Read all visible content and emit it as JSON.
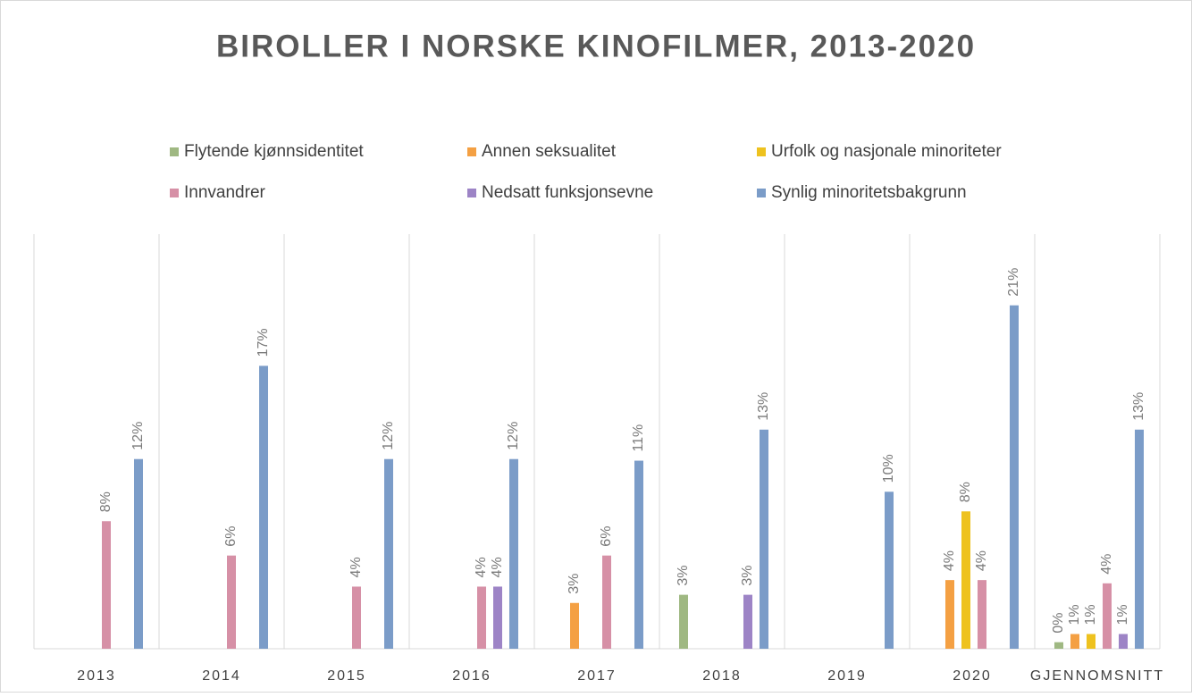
{
  "chart_data": {
    "type": "bar",
    "title": "BIROLLER I NORSKE KINOFILMER, 2013-2020",
    "categories": [
      "2013",
      "2014",
      "2015",
      "2016",
      "2017",
      "2018",
      "2019",
      "2020",
      "GJENNOMSNITT"
    ],
    "series": [
      {
        "name": "Flytende kjønnsidentitet",
        "color": "#9fb882",
        "values": [
          null,
          null,
          null,
          null,
          null,
          3.3,
          null,
          null,
          0.4
        ],
        "value_labels": [
          null,
          null,
          null,
          null,
          null,
          "3%",
          null,
          null,
          "0%"
        ]
      },
      {
        "name": "Annen seksualitet",
        "color": "#f4a043",
        "values": [
          null,
          null,
          null,
          null,
          2.8,
          null,
          null,
          4.2,
          0.9
        ],
        "value_labels": [
          null,
          null,
          null,
          null,
          "3%",
          null,
          null,
          "4%",
          "1%"
        ]
      },
      {
        "name": "Urfolk og nasjonale minoriteter",
        "color": "#eec21f",
        "values": [
          null,
          null,
          null,
          null,
          null,
          null,
          null,
          8.4,
          0.9
        ],
        "value_labels": [
          null,
          null,
          null,
          null,
          null,
          null,
          null,
          "8%",
          "1%"
        ]
      },
      {
        "name": "Innvandrer",
        "color": "#d690a6",
        "values": [
          7.8,
          5.7,
          3.8,
          3.8,
          5.7,
          null,
          null,
          4.2,
          4.0
        ],
        "value_labels": [
          "8%",
          "6%",
          "4%",
          "4%",
          "6%",
          null,
          null,
          "4%",
          "4%"
        ]
      },
      {
        "name": "Nedsatt funksjonsevne",
        "color": "#9d84c6",
        "values": [
          null,
          null,
          null,
          3.8,
          null,
          3.3,
          null,
          null,
          0.9
        ],
        "value_labels": [
          null,
          null,
          null,
          "4%",
          null,
          "3%",
          null,
          null,
          "1%"
        ]
      },
      {
        "name": "Synlig minoritetsbakgrunn",
        "color": "#7b9cc8",
        "values": [
          11.6,
          17.3,
          11.6,
          11.6,
          11.5,
          13.4,
          9.6,
          21,
          13.4
        ],
        "value_labels": [
          "12%",
          "17%",
          "12%",
          "12%",
          "11%",
          "13%",
          "10%",
          "21%",
          "13%"
        ]
      }
    ],
    "ylim": [
      0,
      25
    ]
  }
}
